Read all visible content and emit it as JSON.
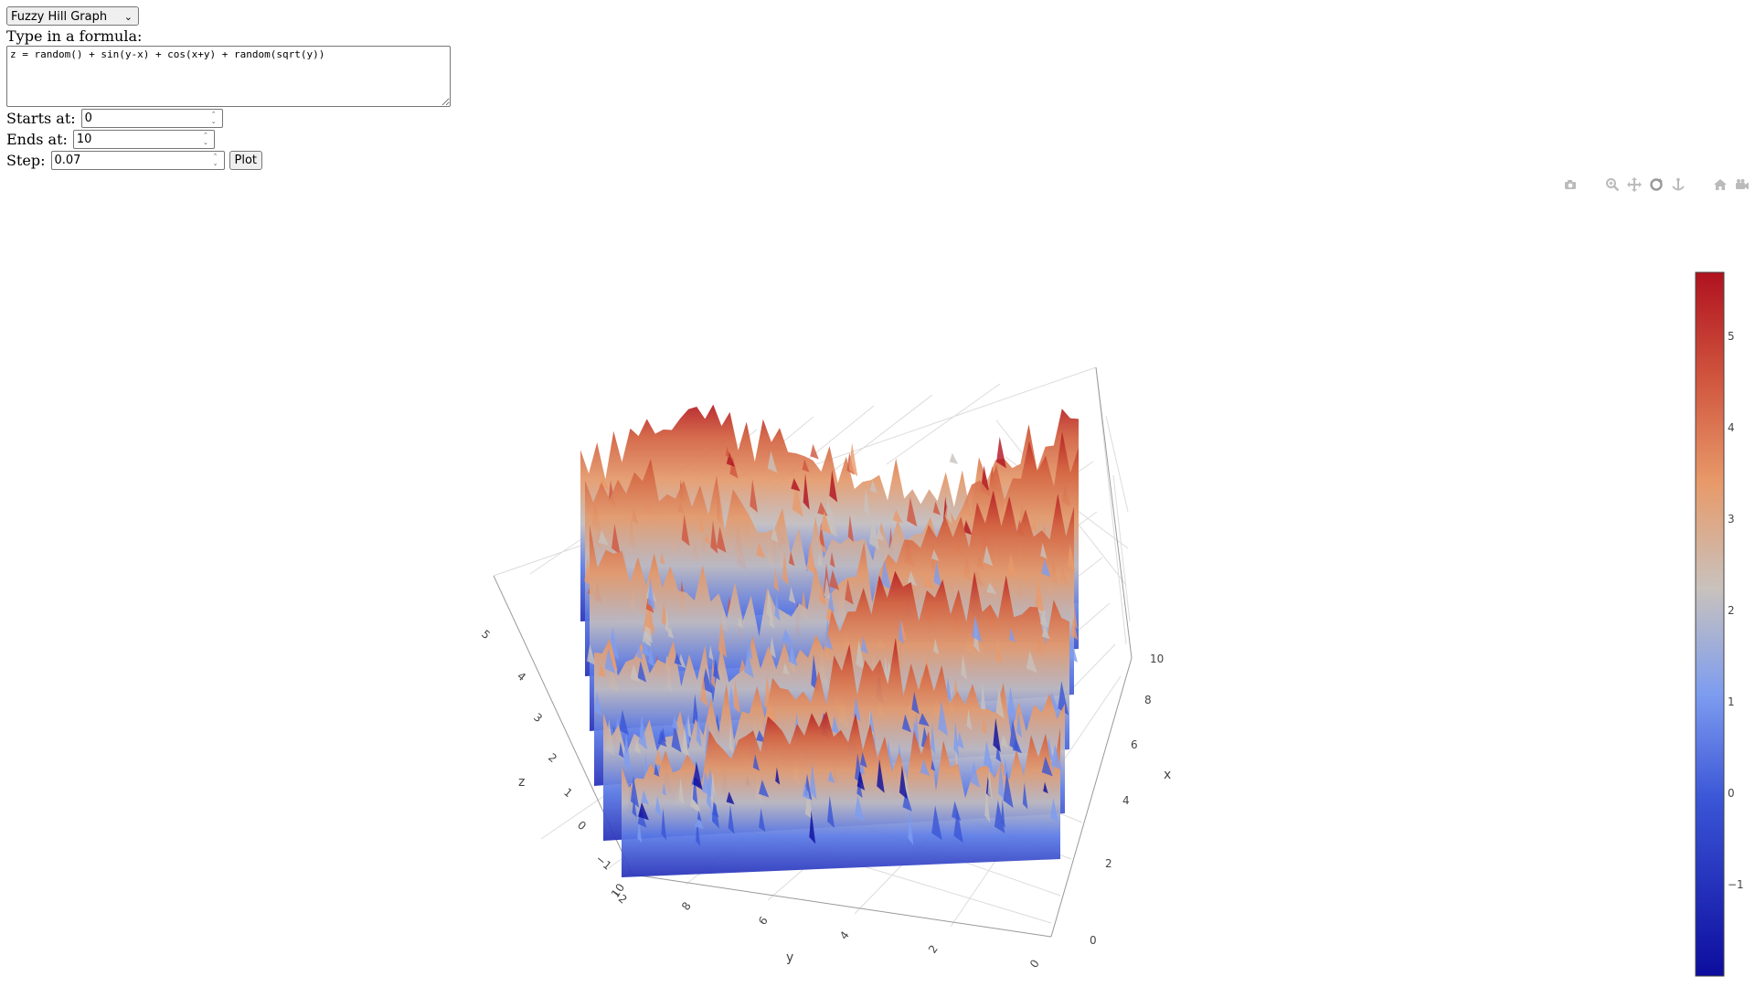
{
  "graph_selector": {
    "selected": "Fuzzy Hill Graph"
  },
  "formula": {
    "label": "Type in a formula:",
    "value": "z = random() + sin(y-x) + cos(x+y) + random(sqrt(y))"
  },
  "start": {
    "label": "Starts at:",
    "value": "0"
  },
  "end": {
    "label": "Ends at:",
    "value": "10"
  },
  "step": {
    "label": "Step:",
    "value": "0.07"
  },
  "plot_button": {
    "label": "Plot"
  },
  "modebar": {
    "icons": [
      "camera-icon",
      "zoom-icon",
      "pan-icon",
      "orbit-rotation-icon",
      "turntable-rotation-icon",
      "reset-camera-icon",
      "hover-toggle-icon",
      "plotly-logo-icon"
    ]
  },
  "chart_data": {
    "type": "surface",
    "title": "",
    "x_axis": {
      "label": "x",
      "ticks": [
        "0",
        "2",
        "4",
        "6",
        "8",
        "10"
      ],
      "range": [
        0,
        10
      ]
    },
    "y_axis": {
      "label": "y",
      "ticks": [
        "0",
        "2",
        "4",
        "6",
        "8",
        "10"
      ],
      "range": [
        0,
        10
      ]
    },
    "z_axis": {
      "label": "z",
      "ticks": [
        "−2",
        "−1",
        "0",
        "1",
        "2",
        "3",
        "4",
        "5"
      ],
      "range": [
        -2,
        5.7
      ]
    },
    "colorbar": {
      "ticks": [
        "−1",
        "0",
        "1",
        "2",
        "3",
        "4",
        "5"
      ],
      "range": [
        -2,
        5.7
      ],
      "colorscale": [
        "#0d0d9e",
        "#3a55d6",
        "#7d9cf0",
        "#c8c2bd",
        "#e89a6a",
        "#d0553e",
        "#b0121f"
      ]
    },
    "grid": true
  }
}
